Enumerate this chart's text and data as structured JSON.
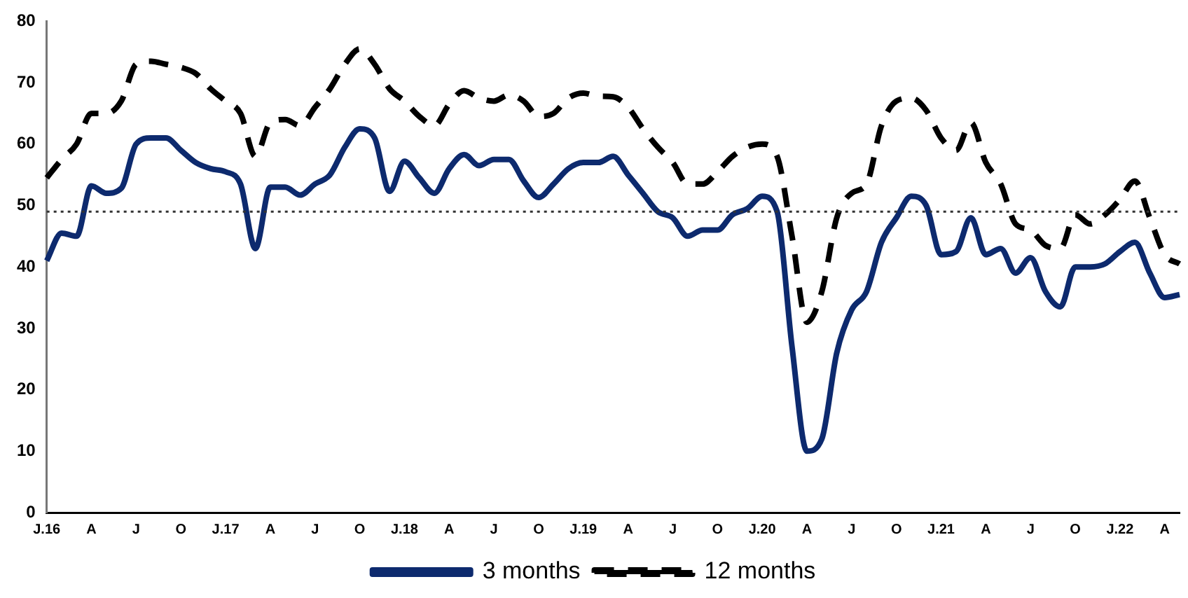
{
  "chart_data": {
    "type": "line",
    "categories": [
      "J.16",
      null,
      null,
      "A",
      null,
      null,
      "J",
      null,
      null,
      "O",
      null,
      null,
      "J.17",
      null,
      null,
      "A",
      null,
      null,
      "J",
      null,
      null,
      "O",
      null,
      null,
      "J.18",
      null,
      null,
      "A",
      null,
      null,
      "J",
      null,
      null,
      "O",
      null,
      null,
      "J.19",
      null,
      null,
      "A",
      null,
      null,
      "J",
      null,
      null,
      "O",
      null,
      null,
      "J.20",
      null,
      null,
      "A",
      null,
      null,
      "J",
      null,
      null,
      "O",
      null,
      null,
      "J.21",
      null,
      null,
      "A",
      null,
      null,
      "J",
      null,
      null,
      "O",
      null,
      null,
      "J.22",
      null,
      null,
      "A",
      null
    ],
    "series": [
      {
        "name": "3 months",
        "color": "#0d2a6e",
        "line_style": "solid",
        "values": [
          41,
          45.5,
          45,
          53.2,
          52,
          52.8,
          60,
          61,
          61,
          59,
          57,
          56,
          55.5,
          53.5,
          43,
          53,
          53,
          51.7,
          53.5,
          55,
          59.5,
          62.5,
          61,
          52.3,
          57.2,
          54.5,
          52,
          56,
          58.3,
          56.5,
          57.5,
          57.5,
          54,
          51.3,
          53.5,
          56,
          57,
          57,
          58,
          55,
          52,
          49,
          48,
          45,
          46,
          46,
          48.5,
          49.5,
          51.5,
          49,
          27,
          10,
          12,
          26,
          33,
          36,
          44,
          48,
          51.5,
          50,
          42,
          42.5,
          48,
          42,
          43,
          39,
          41.5,
          36,
          33.5,
          40,
          40,
          40.5,
          42.5,
          44,
          39,
          35,
          35.5
        ]
      },
      {
        "name": "12 months",
        "color": "#000000",
        "line_style": "dashed",
        "values": [
          54.5,
          57.5,
          60,
          65,
          65,
          67,
          73,
          73.5,
          73,
          72.5,
          71.5,
          69,
          67,
          65,
          58,
          63.5,
          64,
          63,
          66,
          69,
          73,
          75.5,
          73,
          69,
          67,
          64.5,
          63,
          66.5,
          68.7,
          67.5,
          67,
          68,
          67,
          64.5,
          65,
          67.5,
          68.3,
          67.8,
          67.7,
          66,
          62.5,
          59.5,
          57,
          53.5,
          53.5,
          55.5,
          58,
          59.5,
          60,
          58,
          45,
          31,
          36,
          48,
          52,
          53.5,
          63,
          67,
          67.5,
          65.5,
          61,
          59,
          63.5,
          57,
          53.5,
          47,
          46,
          43.5,
          43,
          48.5,
          47,
          48.5,
          51,
          54,
          48,
          42,
          40.5
        ]
      }
    ],
    "ylim": [
      0,
      80
    ],
    "yticks": [
      0,
      10,
      20,
      30,
      40,
      50,
      60,
      70,
      80
    ],
    "ref_lines": [
      {
        "axis": "y",
        "value": 49,
        "line_style": "dotted",
        "color": "#333333"
      }
    ],
    "grid": false,
    "legend": "bottom",
    "marker": "none"
  }
}
